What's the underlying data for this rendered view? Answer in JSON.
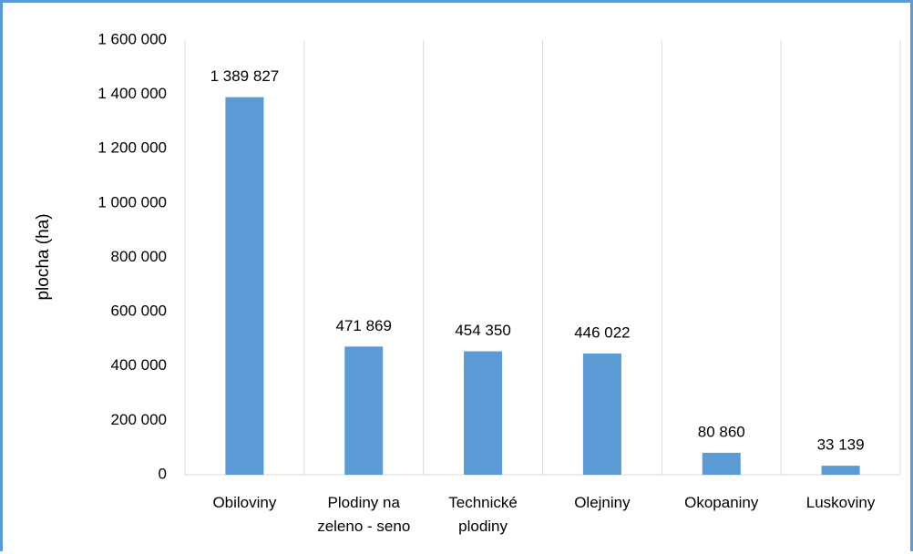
{
  "chart_data": {
    "type": "bar",
    "y_label": "plocha (ha)",
    "categories": [
      "Obiloviny",
      "Plodiny na zeleno - seno",
      "Technické plodiny",
      "Olejniny",
      "Okopaniny",
      "Luskoviny"
    ],
    "values": [
      1389827,
      471869,
      454350,
      446022,
      80860,
      33139
    ],
    "value_labels": [
      "1 389 827",
      "471 869",
      "454 350",
      "446 022",
      "80 860",
      "33 139"
    ],
    "color": "#5b9bd5",
    "ylim": [
      0,
      1600000
    ],
    "yticks": [
      0,
      {
        "value": 200000,
        "label": "200 000"
      },
      {
        "value": 400000,
        "label": "400 000"
      },
      {
        "value": 600000,
        "label": "600 000"
      },
      {
        "value": 800000,
        "label": "800 000"
      },
      {
        "value": 1000000,
        "label": "1 000 000"
      },
      {
        "value": 1200000,
        "label": "1 200 000"
      },
      {
        "value": 1400000,
        "label": "1 400 000"
      },
      {
        "value": 1600000,
        "label": "1 600 000"
      }
    ],
    "grid": false
  }
}
